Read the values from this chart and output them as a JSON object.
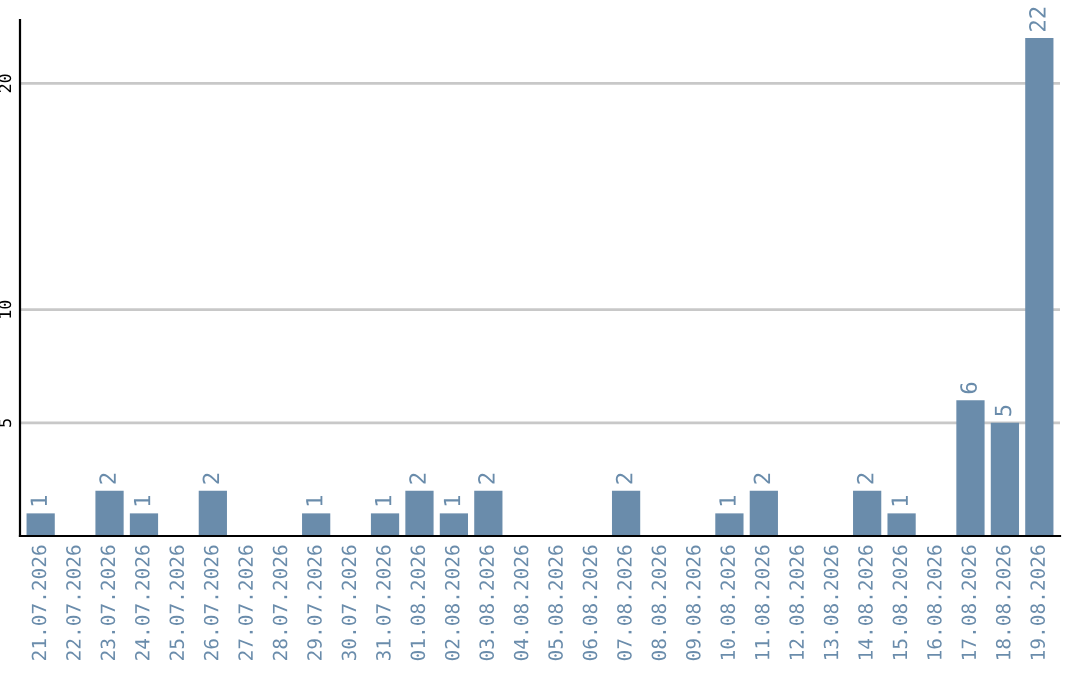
{
  "chart_data": {
    "type": "bar",
    "categories": [
      "21.07.2026",
      "22.07.2026",
      "23.07.2026",
      "24.07.2026",
      "25.07.2026",
      "26.07.2026",
      "27.07.2026",
      "28.07.2026",
      "29.07.2026",
      "30.07.2026",
      "31.07.2026",
      "01.08.2026",
      "02.08.2026",
      "03.08.2026",
      "04.08.2026",
      "05.08.2026",
      "06.08.2026",
      "07.08.2026",
      "08.08.2026",
      "09.08.2026",
      "10.08.2026",
      "11.08.2026",
      "12.08.2026",
      "13.08.2026",
      "14.08.2026",
      "15.08.2026",
      "16.08.2026",
      "17.08.2026",
      "18.08.2026",
      "19.08.2026"
    ],
    "values": [
      1,
      0,
      2,
      1,
      0,
      2,
      0,
      0,
      1,
      0,
      1,
      2,
      1,
      2,
      0,
      0,
      0,
      2,
      0,
      0,
      1,
      2,
      0,
      0,
      2,
      1,
      0,
      6,
      5,
      22
    ],
    "value_labels": [
      "1",
      null,
      "2",
      "1",
      null,
      "2",
      null,
      null,
      "1",
      null,
      "1",
      "2",
      "1",
      "2",
      null,
      null,
      null,
      "2",
      null,
      null,
      "1",
      "2",
      null,
      null,
      "2",
      "1",
      null,
      "6",
      "5",
      "22"
    ],
    "color": "#6a8cab",
    "ylim": [
      0,
      22.8
    ],
    "yticks": [
      5,
      10,
      20
    ],
    "grid": "y"
  }
}
